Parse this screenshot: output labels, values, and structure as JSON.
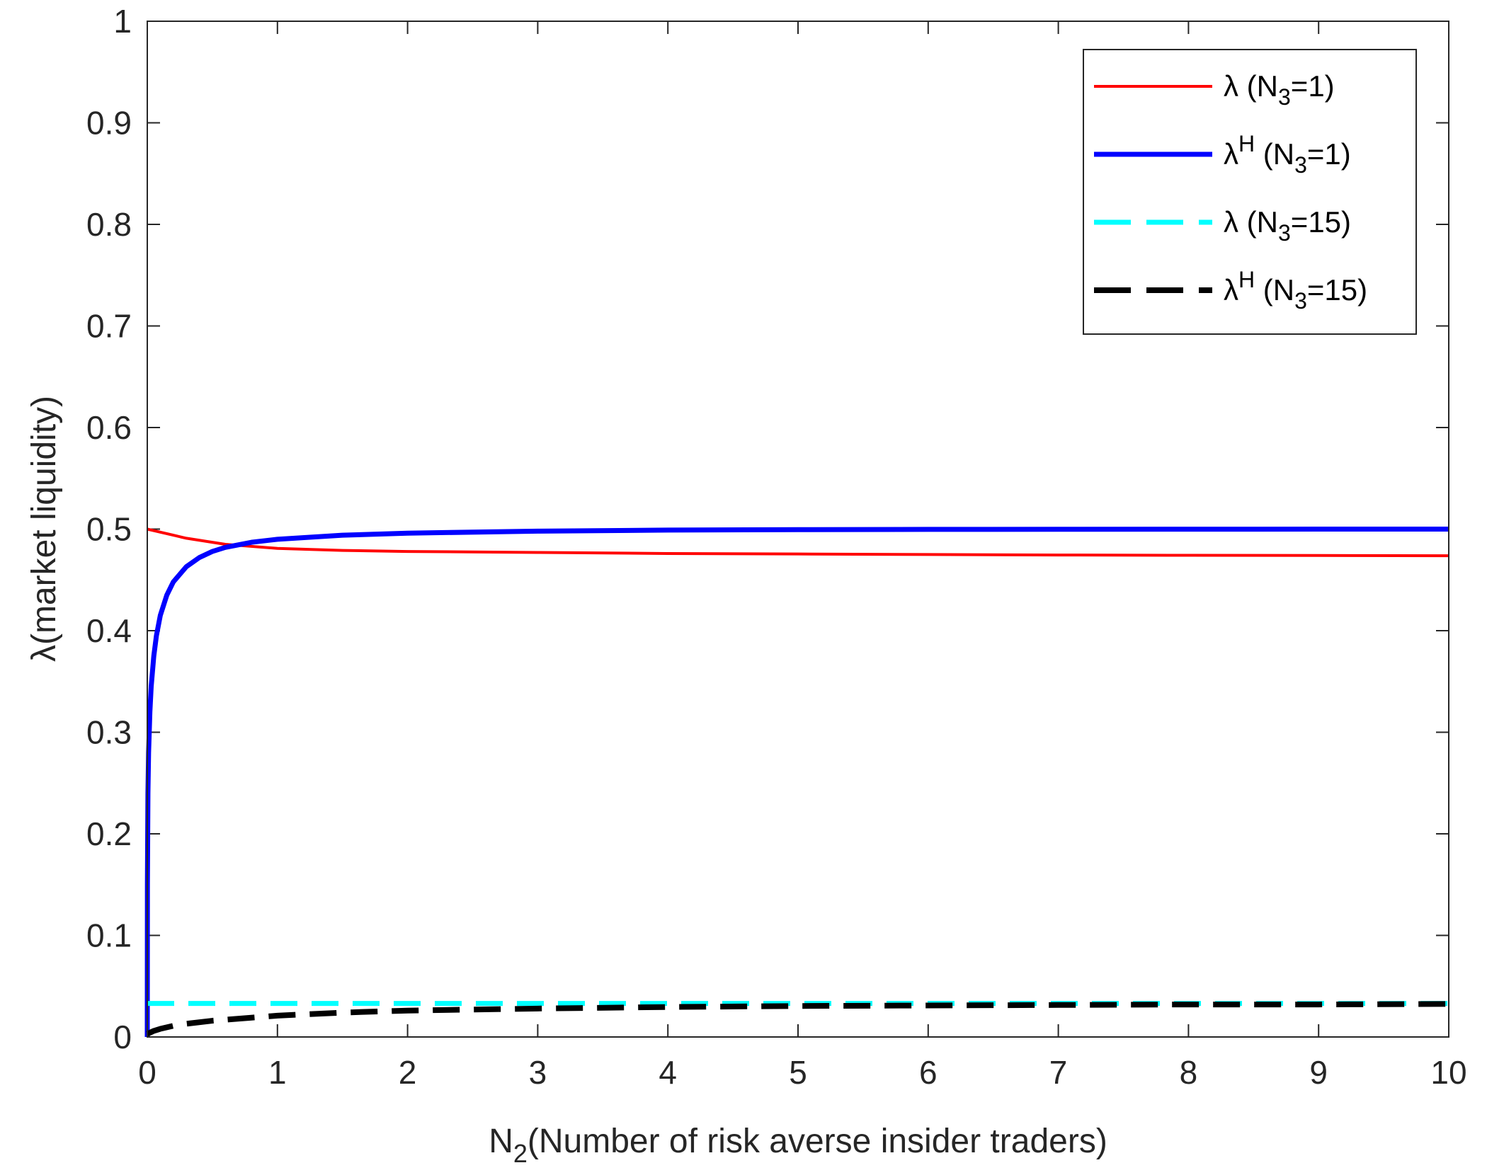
{
  "chart_data": {
    "type": "line",
    "xlabel": "N",
    "xlabel_sub": "2",
    "xlabel_rest": "(Number of risk averse insider traders)",
    "ylabel": "λ(market liquidity)",
    "xlim": [
      0,
      10
    ],
    "ylim": [
      0,
      1
    ],
    "xticks": [
      "0",
      "1",
      "2",
      "3",
      "4",
      "5",
      "6",
      "7",
      "8",
      "9",
      "10"
    ],
    "yticks": [
      "0",
      "0.1",
      "0.2",
      "0.3",
      "0.4",
      "0.5",
      "0.6",
      "0.7",
      "0.8",
      "0.9",
      "1"
    ],
    "grid": false,
    "legend_position": "top-right",
    "series": [
      {
        "legend_base": "λ",
        "legend_sup": "",
        "legend_pre": " (N",
        "legend_sub": "3",
        "legend_post": "=1)",
        "color": "#ff0000",
        "style": "solid",
        "x": [
          0,
          0.1,
          0.2,
          0.3,
          0.4,
          0.5,
          0.6,
          0.8,
          1,
          1.5,
          2,
          3,
          4,
          5,
          6,
          7,
          8,
          9,
          10
        ],
        "y": [
          0.5,
          0.497,
          0.494,
          0.491,
          0.489,
          0.487,
          0.485,
          0.483,
          0.481,
          0.479,
          0.478,
          0.477,
          0.476,
          0.4755,
          0.475,
          0.4745,
          0.4742,
          0.474,
          0.4738
        ]
      },
      {
        "legend_base": "λ",
        "legend_sup": "H",
        "legend_pre": " (N",
        "legend_sub": "3",
        "legend_post": "=1)",
        "color": "#0000ff",
        "style": "solid-thick",
        "x": [
          0,
          0.001,
          0.005,
          0.01,
          0.02,
          0.03,
          0.05,
          0.07,
          0.1,
          0.15,
          0.2,
          0.3,
          0.4,
          0.5,
          0.6,
          0.8,
          1,
          1.5,
          2,
          3,
          4,
          5,
          6,
          7,
          8,
          9,
          10
        ],
        "y": [
          0,
          0.15,
          0.24,
          0.28,
          0.32,
          0.345,
          0.375,
          0.395,
          0.415,
          0.435,
          0.448,
          0.463,
          0.472,
          0.478,
          0.482,
          0.487,
          0.49,
          0.494,
          0.496,
          0.498,
          0.499,
          0.4995,
          0.4997,
          0.4998,
          0.4999,
          0.5,
          0.5
        ]
      },
      {
        "legend_base": "λ",
        "legend_sup": "",
        "legend_pre": " (N",
        "legend_sub": "3",
        "legend_post": "=15)",
        "color": "#00ffff",
        "style": "dashed",
        "x": [
          0,
          1,
          2,
          3,
          4,
          5,
          6,
          7,
          8,
          9,
          10
        ],
        "y": [
          0.033,
          0.033,
          0.033,
          0.033,
          0.033,
          0.033,
          0.033,
          0.033,
          0.033,
          0.033,
          0.033
        ]
      },
      {
        "legend_base": "λ",
        "legend_sup": "H",
        "legend_pre": " (N",
        "legend_sub": "3",
        "legend_post": "=15)",
        "color": "#000000",
        "style": "dashed-thick",
        "x": [
          0,
          0.05,
          0.1,
          0.2,
          0.3,
          0.5,
          0.8,
          1,
          1.5,
          2,
          3,
          4,
          5,
          6,
          7,
          8,
          9,
          10
        ],
        "y": [
          0.003,
          0.006,
          0.008,
          0.011,
          0.013,
          0.016,
          0.019,
          0.021,
          0.024,
          0.026,
          0.028,
          0.0295,
          0.0305,
          0.031,
          0.0315,
          0.032,
          0.032,
          0.0325
        ]
      }
    ]
  }
}
